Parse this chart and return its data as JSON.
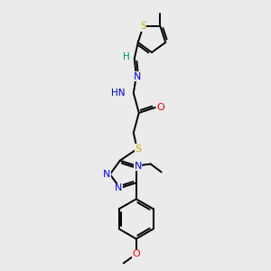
{
  "bg_color": "#ebebeb",
  "bond_color": "#000000",
  "atom_colors": {
    "N": "#0000ff",
    "O": "#ff0000",
    "S": "#ccaa00",
    "C": "#000000",
    "H": "#008888"
  },
  "figsize": [
    3.0,
    3.0
  ],
  "dpi": 100
}
